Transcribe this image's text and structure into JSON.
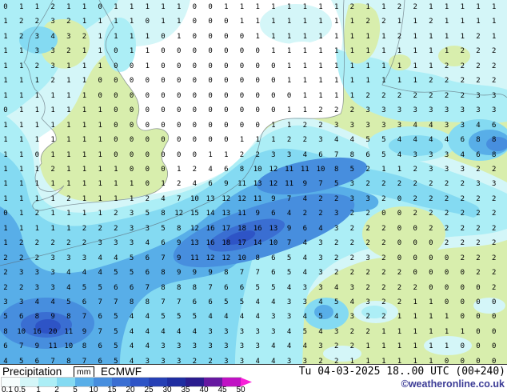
{
  "legend_bar": {
    "title": "Precipitation",
    "unit": "mm",
    "model": "ECMWF",
    "datetime": "Tu 04-03-2025 18..00 UTC (00+240)",
    "copyright": "©weatheronline.co.uk",
    "scale_labels": [
      "0.1",
      "0.5",
      "1",
      "2",
      "5",
      "10",
      "15",
      "20",
      "25",
      "30",
      "35",
      "40",
      "45",
      "50"
    ],
    "scale_colors": [
      "#f6fdfd",
      "#d4f6f8",
      "#aceef6",
      "#84daf2",
      "#58aee8",
      "#478ede",
      "#3a6ed2",
      "#2e54c6",
      "#2640b4",
      "#1f2da0",
      "#2a1c8e",
      "#6618a0",
      "#c012c4"
    ],
    "arrow_color": "#f81fd8"
  },
  "map_colors": {
    "sea": "#ffffff",
    "land": "#d8eead",
    "p05": "#d4f6f8",
    "p1": "#aceef6",
    "p2": "#84daf2",
    "p5": "#58aee8",
    "p10": "#478ede",
    "p15": "#3a6ed2",
    "p20": "#2e54c6",
    "coast": "#5a6670"
  },
  "chart_data": {
    "type": "heatmap",
    "title": "Precipitation [mm] ECMWF",
    "timestamp": "Tu 04-03-2025 18..00 UTC (00+240)",
    "unit": "mm",
    "scale_values": [
      0.1,
      0.5,
      1,
      2,
      5,
      10,
      15,
      20,
      25,
      30,
      35,
      40,
      45,
      50
    ],
    "legend_position": "bottom",
    "region": "North Sea / UK / NW Europe",
    "grid_rows": [
      "0 1 1 2 1 1 0 1 1 1 1 1 0 0 1 1 1 1 1 1 1 1 2 1 1 2 2 1 1 1 1 1",
      "1 2 2 3 2 1 1 1 1 0 1 1 0 0 0 1 1 1 1 1 1 1 1 2 2 1 1 2 1 1 1 1",
      "1 2 3 4 3 2 1 1 1 1 0 1 0 0 0 0 1 1 1 1 1 1 1 1 1 2 1 1 1 1 2 1",
      "1 1 3 3 2 1 1 0 1 1 0 0 0 0 0 0 0 1 1 1 1 1 1 1 1 1 1 1 1 2 2 2",
      "1 1 2 3 1 1 1 0 0 1 0 0 0 0 0 0 0 0 1 1 1 1 1 1 1 1 1 1 2 2 2 2",
      "1 1 1 2 1 1 0 0 0 0 0 0 0 0 0 0 0 0 1 1 1 1 1 1 1 1 1 2 2 2 2 2",
      "1 1 1 1 1 1 0 0 0 0 0 0 0 0 0 0 0 0 0 1 1 1 1 2 2 2 2 2 2 2 3 3",
      "0 1 1 1 1 1 1 0 0 0 0 0 0 0 0 0 0 0 1 1 2 2 2 3 3 3 3 3 3 3 3 3",
      "1 1 1 1 1 1 1 0 0 0 0 0 0 0 0 0 0 1 1 2 2 3 3 3 3 3 4 4 3 3 4 6",
      "1 1 1 1 1 1 1 0 0 0 0 0 0 0 0 1 1 1 2 2 3 4 4 5 5 4 4 4 4 6 8 8",
      "1 1 0 1 1 1 1 0 0 0 0 0 0 1 1 2 2 3 3 4 6 7 8 6 5 4 3 3 3 4 6 8",
      "1 1 1 2 1 1 1 1 0 0 0 1 2 4 6 8 10 12 11 11 10 8 5 2 1 1 2 3 3 3 2 2",
      "1 1 1 1 1 1 1 1 1 0 1 2 4 6 9 11 13 12 11 9 7 5 3 2 2 2 2 2 2 2 3 3",
      "1 1 1 1 2 1 1 1 1 2 4 7 10 13 12 12 11 9 7 4 2 2 3 3 2 0 2 2 2 2 2 2",
      "0 1 2 1 1 1 1 2 3 5 8 12 15 14 13 11 9 6 4 2 2 3 2 2 0 0 2 2 2 2 2 2",
      "1 1 1 1 1 2 2 2 3 3 5 8 12 16 17 18 16 13 9 6 4 3 2 2 2 0 0 2 2 2 2 2",
      "1 2 2 2 2 2 3 3 3 4 6 9 13 16 18 17 14 10 7 4 3 2 2 2 2 0 0 0 2 2 2 2",
      "2 2 2 3 3 3 4 4 5 6 7 9 11 12 12 10 8 6 5 4 3 2 2 3 2 0 0 0 0 2 2 2",
      "2 3 3 3 4 4 4 5 5 6 8 9 9 9 8 7 7 6 5 4 3 2 2 2 2 2 0 0 0 0 2 2",
      "2 2 3 3 4 5 5 6 6 7 8 8 8 7 6 6 5 5 4 3 3 4 3 2 2 2 2 0 0 0 0 2",
      "3 3 4 4 5 6 7 7 8 8 7 7 6 6 5 5 4 4 3 3 4 5 4 3 2 2 1 1 0 0 0 0",
      "5 6 8 9 8 7 6 5 4 4 5 5 5 4 4 4 4 3 3 4 5 4 3 2 2 1 1 1 1 0 0 0",
      "8 10 16 20 11 9 7 5 4 4 4 4 4 3 3 3 3 3 4 5 4 3 2 2 1 1 1 1 1 1 0 0",
      "6 7 9 11 10 8 6 5 4 4 3 3 3 3 3 3 3 4 4 4 3 2 2 1 1 1 1 1 1 0 0 0",
      "4 5 6 7 8 7 6 5 4 3 3 3 2 2 3 3 4 4 3 3 2 2 1 1 1 1 1 1 0 0 0 0"
    ]
  }
}
